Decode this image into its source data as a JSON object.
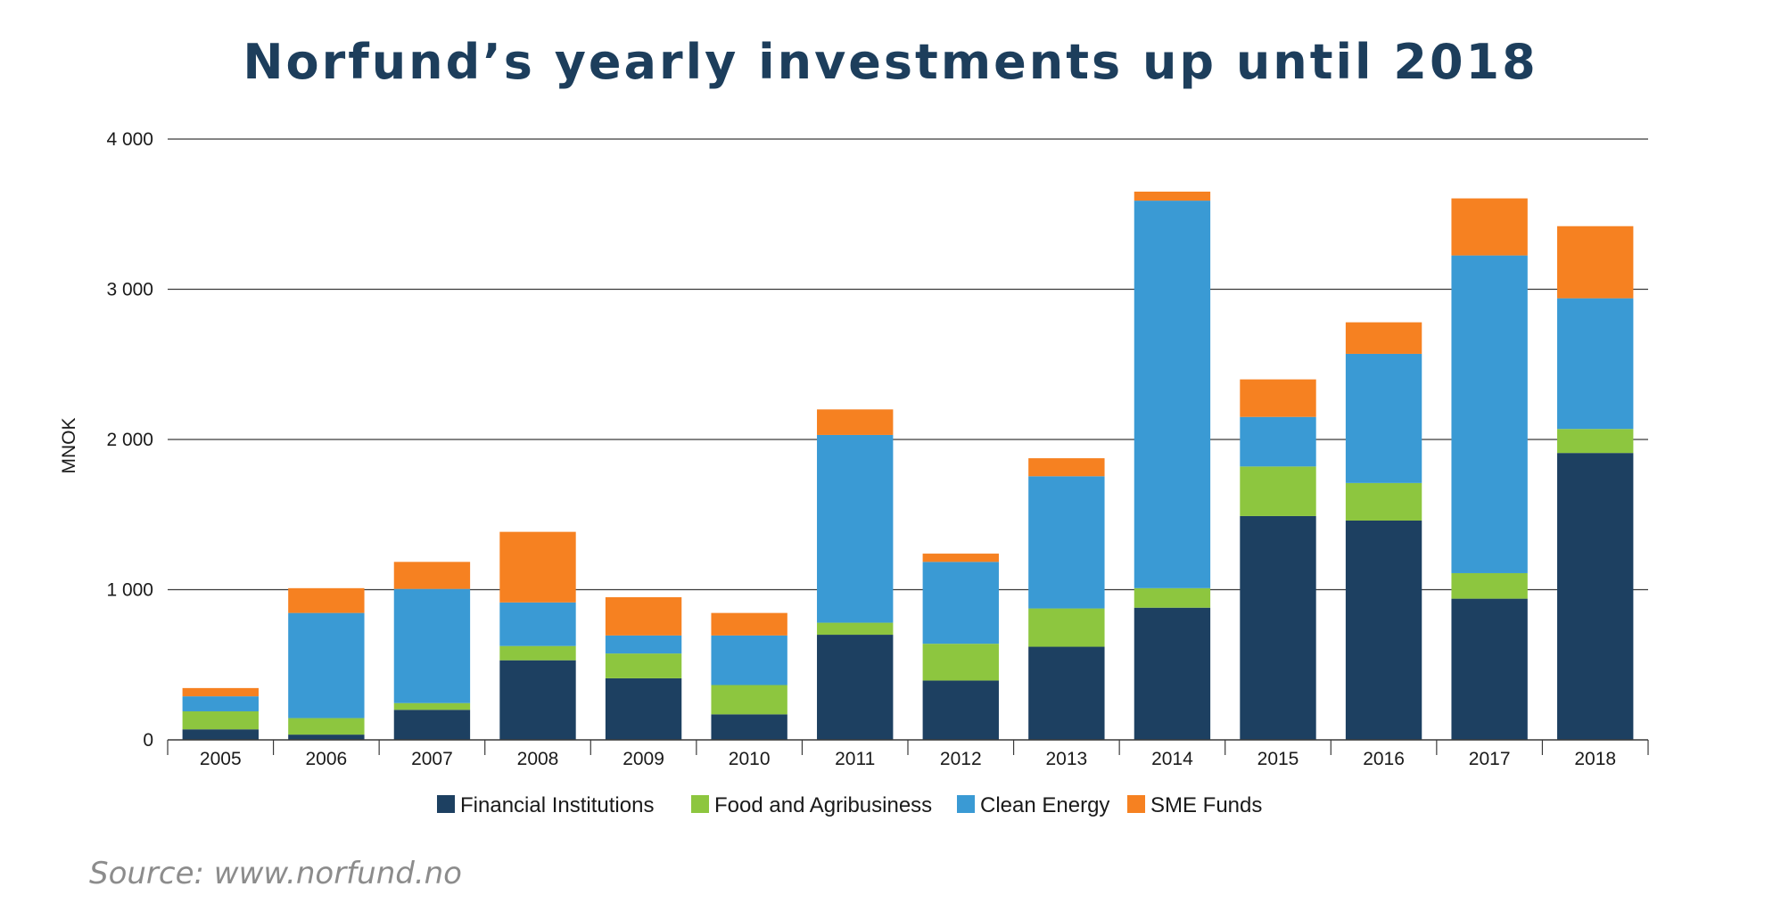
{
  "chart_data": {
    "type": "bar",
    "stacked": true,
    "title": "Norfund’s yearly investments up until 2018",
    "xlabel": "",
    "ylabel": "MNOK",
    "ylim": [
      0,
      4000
    ],
    "yticks": [
      0,
      1000,
      2000,
      3000,
      4000
    ],
    "ytick_labels": [
      "0",
      "1 000",
      "2 000",
      "3 000",
      "4 000"
    ],
    "grid": true,
    "legend_position": "bottom",
    "categories": [
      "2005",
      "2006",
      "2007",
      "2008",
      "2009",
      "2010",
      "2011",
      "2012",
      "2013",
      "2014",
      "2015",
      "2016",
      "2017",
      "2018"
    ],
    "series": [
      {
        "name": "Financial Institutions",
        "color": "#1d4061",
        "values": [
          70,
          35,
          200,
          530,
          410,
          170,
          700,
          395,
          620,
          880,
          1490,
          1460,
          940,
          1910
        ]
      },
      {
        "name": "Food and Agribusiness",
        "color": "#8dc63f",
        "values": [
          120,
          110,
          45,
          95,
          165,
          195,
          80,
          245,
          255,
          130,
          330,
          250,
          170,
          160
        ]
      },
      {
        "name": "Clean Energy",
        "color": "#3a9ad4",
        "values": [
          100,
          700,
          760,
          290,
          120,
          330,
          1250,
          545,
          880,
          2580,
          330,
          860,
          2115,
          870
        ]
      },
      {
        "name": "SME Funds",
        "color": "#f68121",
        "values": [
          55,
          165,
          180,
          470,
          255,
          150,
          170,
          55,
          120,
          60,
          250,
          210,
          380,
          480
        ]
      }
    ]
  },
  "source": "Source: www.norfund.no"
}
